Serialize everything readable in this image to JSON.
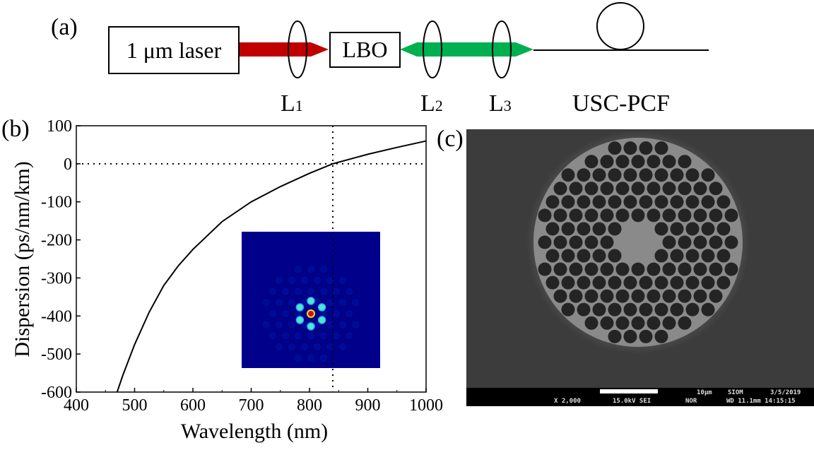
{
  "panel_a": {
    "label": "(a)",
    "laser": "1 μm laser",
    "crystal": "LBO",
    "lenses": [
      "L",
      "L",
      "L"
    ],
    "lens_subscripts": [
      "1",
      "2",
      "3"
    ],
    "fiber": "USC-PCF",
    "colors": {
      "red_beam": "#c00000",
      "green_beam": "#00b050"
    }
  },
  "panel_b": {
    "label": "(b)"
  },
  "panel_c": {
    "label": "(c)",
    "sem_info": {
      "magnification": "X 2,000",
      "voltage": "15.0kV SEI",
      "scale": "10μm",
      "org": "SIOM",
      "date": "3/5/2019",
      "mode": "NOR",
      "wd_time": "WD 11.1mm 14:15:15"
    }
  },
  "chart_data": {
    "type": "line",
    "xlabel": "Wavelength (nm)",
    "ylabel": "Dispersion (ps/nm/km)",
    "xlim": [
      400,
      1000
    ],
    "ylim": [
      -600,
      100
    ],
    "xticks": [
      "400",
      "500",
      "600",
      "700",
      "800",
      "900",
      "1000"
    ],
    "yticks": [
      "100",
      "0",
      "-100",
      "-200",
      "-300",
      "-400",
      "-500",
      "-600"
    ],
    "grid": false,
    "series": [
      {
        "x": [
          470,
          480,
          500,
          525,
          550,
          575,
          600,
          650,
          700,
          750,
          800,
          840,
          900,
          950,
          1000
        ],
        "y": [
          -600,
          -555,
          -475,
          -390,
          -320,
          -268,
          -225,
          -152,
          -100,
          -60,
          -25,
          0,
          25,
          43,
          60
        ]
      }
    ],
    "reference_lines": {
      "zero_dispersion_wavelength": 840,
      "y": 0
    },
    "inset": "mode field image"
  }
}
